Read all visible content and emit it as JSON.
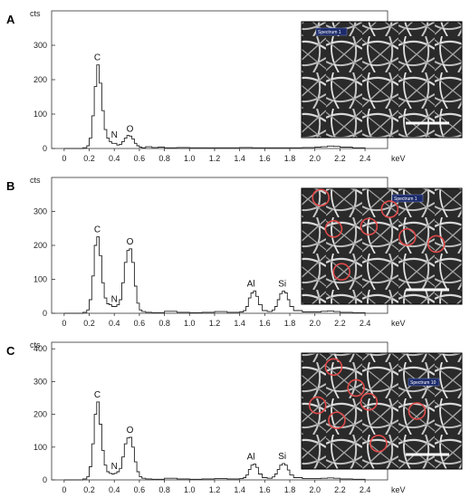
{
  "x_axis": {
    "ticks": [
      "0",
      "0.2",
      "0.4",
      "0.6",
      "0.8",
      "1.0",
      "1.2",
      "1.4",
      "1.6",
      "1.8",
      "2.0",
      "2.2",
      "2.4"
    ],
    "unit": "keV",
    "xlim": [
      -0.1,
      2.58
    ]
  },
  "chart_data": [
    {
      "type": "line",
      "panel_label": "A",
      "ylabel": "cts",
      "ylim": [
        0,
        400
      ],
      "yticks": [
        "0",
        "100",
        "200",
        "300"
      ],
      "peaks": [
        {
          "label": "C",
          "x": 0.265,
          "y": 243
        },
        {
          "label": "N",
          "x": 0.4,
          "y": 18
        },
        {
          "label": "O",
          "x": 0.525,
          "y": 36
        }
      ],
      "series": [
        {
          "x": [
            0,
            0.1,
            0.15,
            0.18,
            0.2,
            0.22,
            0.24,
            0.26,
            0.28,
            0.3,
            0.32,
            0.34,
            0.36,
            0.38,
            0.4,
            0.42,
            0.44,
            0.46,
            0.48,
            0.5,
            0.52,
            0.54,
            0.56,
            0.58,
            0.6,
            0.62,
            0.65,
            0.7,
            0.75,
            0.8,
            0.9,
            1.0,
            1.2,
            1.4,
            1.5,
            1.6,
            1.8,
            1.9,
            2.0,
            2.05,
            2.1,
            2.15,
            2.2,
            2.3,
            2.4
          ],
          "y": [
            0,
            0,
            2,
            8,
            30,
            95,
            180,
            243,
            190,
            110,
            55,
            30,
            20,
            15,
            15,
            10,
            12,
            20,
            30,
            38,
            36,
            28,
            15,
            8,
            4,
            2,
            5,
            3,
            4,
            2,
            3,
            2,
            2,
            3,
            2,
            2,
            2,
            3,
            4,
            5,
            7,
            6,
            4,
            2,
            0
          ]
        }
      ],
      "inset": {
        "tag": "Spectrum 1",
        "circles": []
      }
    },
    {
      "type": "line",
      "panel_label": "B",
      "ylabel": "cts",
      "ylim": [
        0,
        400
      ],
      "yticks": [
        "0",
        "100",
        "200",
        "300"
      ],
      "peaks": [
        {
          "label": "C",
          "x": 0.265,
          "y": 225
        },
        {
          "label": "N",
          "x": 0.4,
          "y": 20
        },
        {
          "label": "O",
          "x": 0.525,
          "y": 190
        },
        {
          "label": "Al",
          "x": 1.49,
          "y": 66
        },
        {
          "label": "Si",
          "x": 1.74,
          "y": 65
        }
      ],
      "series": [
        {
          "x": [
            0,
            0.1,
            0.15,
            0.18,
            0.2,
            0.22,
            0.24,
            0.26,
            0.28,
            0.3,
            0.32,
            0.34,
            0.36,
            0.38,
            0.4,
            0.42,
            0.44,
            0.46,
            0.48,
            0.5,
            0.52,
            0.54,
            0.56,
            0.58,
            0.6,
            0.62,
            0.65,
            0.7,
            0.8,
            0.9,
            1.0,
            1.1,
            1.2,
            1.3,
            1.4,
            1.43,
            1.45,
            1.47,
            1.49,
            1.51,
            1.53,
            1.55,
            1.58,
            1.62,
            1.66,
            1.68,
            1.7,
            1.72,
            1.74,
            1.76,
            1.78,
            1.8,
            1.83,
            1.9,
            2.0,
            2.05,
            2.1,
            2.15,
            2.2,
            2.3,
            2.4
          ],
          "y": [
            0,
            0,
            3,
            10,
            40,
            110,
            200,
            225,
            170,
            90,
            45,
            28,
            25,
            20,
            20,
            25,
            40,
            90,
            150,
            185,
            190,
            150,
            80,
            30,
            10,
            5,
            3,
            2,
            6,
            3,
            2,
            3,
            5,
            3,
            4,
            8,
            20,
            45,
            60,
            66,
            50,
            25,
            8,
            5,
            10,
            20,
            40,
            58,
            65,
            60,
            40,
            20,
            8,
            4,
            4,
            6,
            7,
            5,
            3,
            2,
            0
          ]
        }
      ],
      "inset": {
        "tag": "Spectrum 1",
        "circles": 7
      }
    },
    {
      "type": "line",
      "panel_label": "C",
      "ylabel": "cts",
      "ylim": [
        0,
        420
      ],
      "yticks": [
        "0",
        "100",
        "200",
        "300",
        "400"
      ],
      "peaks": [
        {
          "label": "C",
          "x": 0.265,
          "y": 238
        },
        {
          "label": "N",
          "x": 0.4,
          "y": 20
        },
        {
          "label": "O",
          "x": 0.525,
          "y": 130
        },
        {
          "label": "Al",
          "x": 1.49,
          "y": 48
        },
        {
          "label": "Si",
          "x": 1.74,
          "y": 50
        }
      ],
      "series": [
        {
          "x": [
            0,
            0.1,
            0.15,
            0.18,
            0.2,
            0.22,
            0.24,
            0.26,
            0.28,
            0.3,
            0.32,
            0.34,
            0.36,
            0.38,
            0.4,
            0.42,
            0.44,
            0.46,
            0.48,
            0.5,
            0.52,
            0.54,
            0.56,
            0.58,
            0.6,
            0.62,
            0.65,
            0.7,
            0.8,
            0.9,
            1.0,
            1.1,
            1.2,
            1.3,
            1.4,
            1.43,
            1.45,
            1.47,
            1.49,
            1.51,
            1.53,
            1.55,
            1.58,
            1.62,
            1.66,
            1.68,
            1.7,
            1.72,
            1.74,
            1.76,
            1.78,
            1.8,
            1.83,
            1.9,
            2.0,
            2.05,
            2.1,
            2.15,
            2.2,
            2.3,
            2.4
          ],
          "y": [
            0,
            0,
            3,
            10,
            40,
            110,
            200,
            238,
            170,
            90,
            45,
            25,
            20,
            18,
            20,
            25,
            35,
            70,
            110,
            128,
            130,
            100,
            55,
            25,
            10,
            5,
            3,
            2,
            5,
            3,
            2,
            3,
            4,
            3,
            4,
            7,
            15,
            32,
            45,
            48,
            38,
            18,
            7,
            5,
            9,
            18,
            32,
            45,
            50,
            45,
            30,
            15,
            7,
            4,
            4,
            5,
            6,
            5,
            3,
            2,
            0
          ]
        }
      ],
      "inset": {
        "tag": "Spectrum 10",
        "circles": 7
      }
    }
  ]
}
